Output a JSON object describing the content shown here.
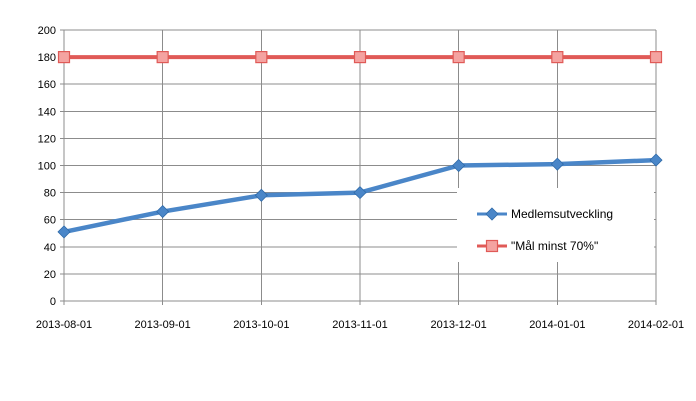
{
  "chart_data": {
    "type": "line",
    "categories": [
      "2013-08-01",
      "2013-09-01",
      "2013-10-01",
      "2013-11-01",
      "2013-12-01",
      "2014-01-01",
      "2014-02-01"
    ],
    "series": [
      {
        "name": "Medlemsutveckling",
        "color": "#4a86c8",
        "marker": "diamond",
        "values": [
          51,
          66,
          78,
          80,
          100,
          101,
          104
        ]
      },
      {
        "name": "\"Mål minst 70%\"",
        "color": "#e05a57",
        "marker": "square",
        "values": [
          180,
          180,
          180,
          180,
          180,
          180,
          180
        ]
      }
    ],
    "ylim": [
      0,
      200
    ],
    "yticks": [
      0,
      20,
      40,
      60,
      80,
      100,
      120,
      140,
      160,
      180,
      200
    ],
    "grid": true,
    "legend_position": "right"
  }
}
